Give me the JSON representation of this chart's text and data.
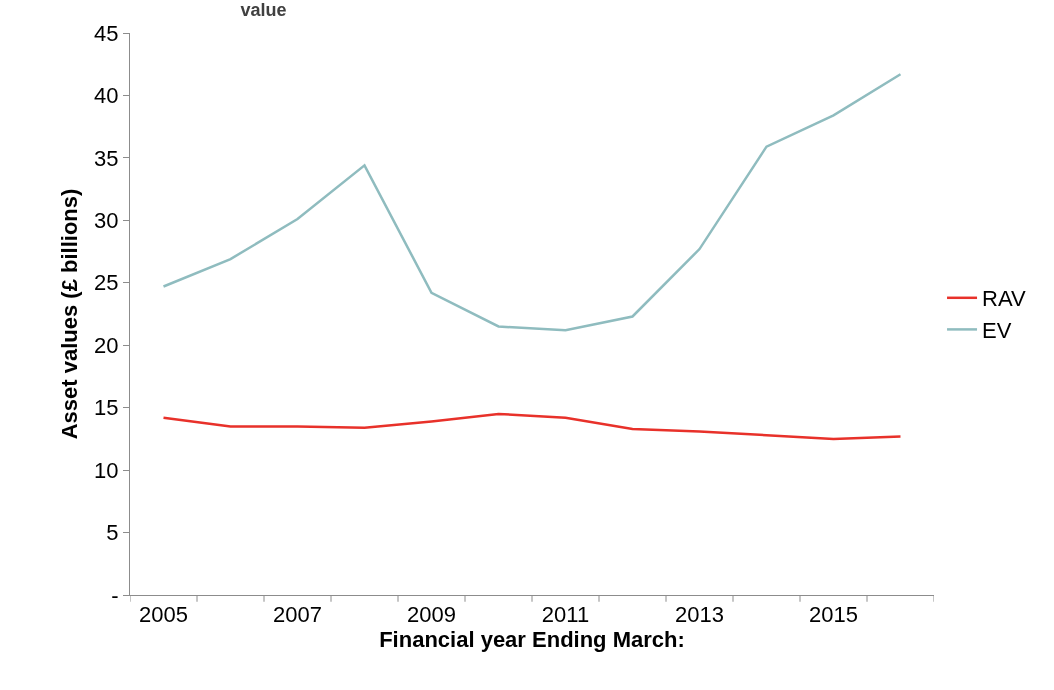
{
  "chart_data": {
    "type": "line",
    "title": "value",
    "xlabel": "Financial year Ending March:",
    "ylabel": "Asset values (£ billions)",
    "categories": [
      "2005",
      null,
      "2007",
      null,
      "2009",
      null,
      "2011",
      null,
      "2013",
      null,
      "2015",
      null
    ],
    "series": [
      {
        "name": "RAV",
        "color": "#e8312a",
        "values": [
          14.2,
          13.5,
          13.5,
          13.4,
          13.9,
          14.5,
          14.2,
          13.3,
          13.1,
          12.8,
          12.5,
          12.7
        ]
      },
      {
        "name": "EV",
        "color": "#8fbcbf",
        "values": [
          24.7,
          26.9,
          30.1,
          34.4,
          24.2,
          21.5,
          21.2,
          22.3,
          27.7,
          35.9,
          38.4,
          41.7
        ]
      }
    ],
    "ylim": [
      0,
      45
    ],
    "yticks": [
      {
        "value": 0,
        "label": "-"
      },
      5,
      10,
      15,
      20,
      25,
      30,
      35,
      40,
      45
    ],
    "grid": false,
    "legend": "right",
    "marker": "none",
    "line_style": "solid"
  }
}
